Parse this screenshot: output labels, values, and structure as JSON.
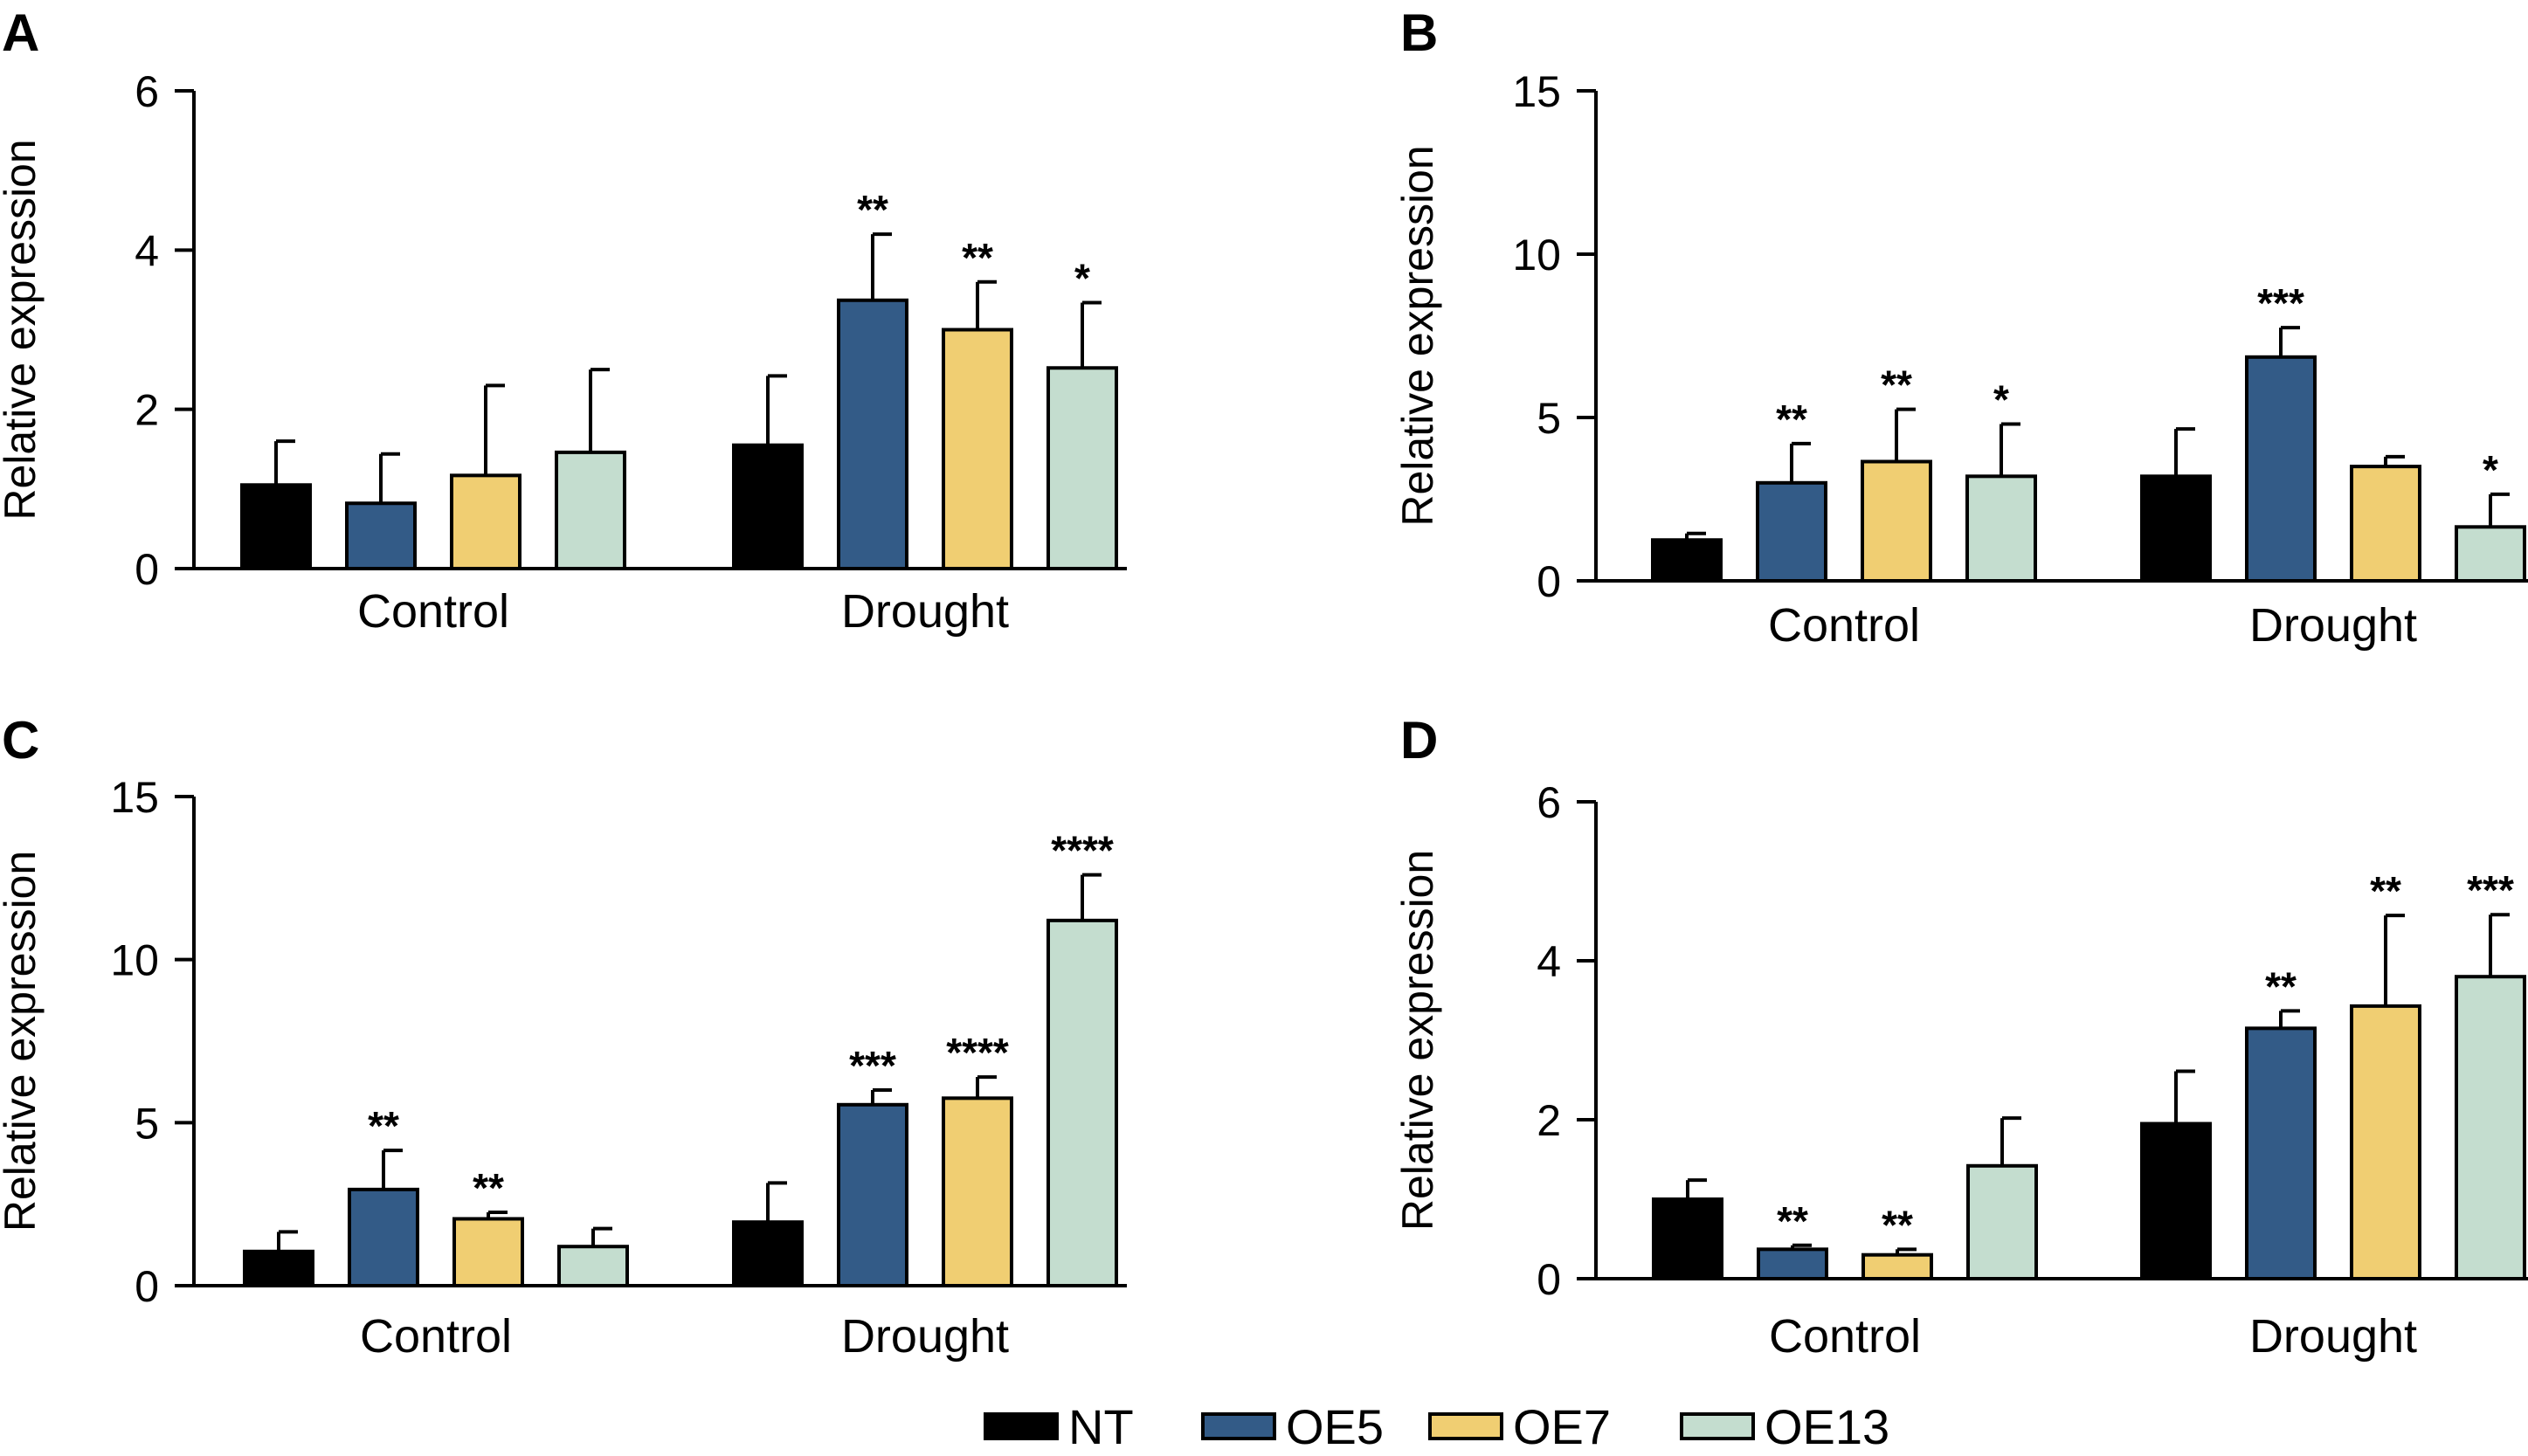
{
  "colors": {
    "NT": "#000000",
    "OE5": "#335b87",
    "OE7": "#f0ce72",
    "OE13": "#c4ddcf"
  },
  "legend": [
    {
      "label": "NT",
      "color": "#000000"
    },
    {
      "label": "OE5",
      "color": "#335b87"
    },
    {
      "label": "OE7",
      "color": "#f0ce72"
    },
    {
      "label": "OE13",
      "color": "#c4ddcf"
    }
  ],
  "chart_data": [
    {
      "panel": "A",
      "type": "bar",
      "ylabel": "Relative expression",
      "ylim": [
        0,
        6
      ],
      "yticks": [
        0,
        2,
        4,
        6
      ],
      "categories": [
        "Control",
        "Drought"
      ],
      "series": [
        {
          "name": "NT",
          "values": [
            1.05,
            1.55
          ],
          "errors": [
            0.55,
            0.87
          ],
          "sig": [
            "",
            ""
          ]
        },
        {
          "name": "OE5",
          "values": [
            0.82,
            3.37
          ],
          "errors": [
            0.62,
            0.83
          ],
          "sig": [
            "",
            "**"
          ]
        },
        {
          "name": "OE7",
          "values": [
            1.17,
            3.0
          ],
          "errors": [
            1.13,
            0.6
          ],
          "sig": [
            "",
            "**"
          ]
        },
        {
          "name": "OE13",
          "values": [
            1.46,
            2.52
          ],
          "errors": [
            1.04,
            0.82
          ],
          "sig": [
            "",
            "*"
          ]
        }
      ]
    },
    {
      "panel": "B",
      "type": "bar",
      "ylabel": "Relative expression",
      "ylim": [
        0,
        15
      ],
      "yticks": [
        0,
        5,
        10,
        15
      ],
      "categories": [
        "Control",
        "Drought"
      ],
      "series": [
        {
          "name": "NT",
          "values": [
            1.25,
            3.2
          ],
          "errors": [
            0.2,
            1.45
          ],
          "sig": [
            "",
            ""
          ]
        },
        {
          "name": "OE5",
          "values": [
            3.0,
            6.85
          ],
          "errors": [
            1.2,
            0.9
          ],
          "sig": [
            "**",
            "***"
          ]
        },
        {
          "name": "OE7",
          "values": [
            3.65,
            3.5
          ],
          "errors": [
            1.6,
            0.3
          ],
          "sig": [
            "**",
            ""
          ]
        },
        {
          "name": "OE13",
          "values": [
            3.2,
            1.65
          ],
          "errors": [
            1.6,
            1.0
          ],
          "sig": [
            "*",
            "*"
          ]
        }
      ]
    },
    {
      "panel": "C",
      "type": "bar",
      "ylabel": "Relative expression",
      "ylim": [
        0,
        15
      ],
      "yticks": [
        0,
        5,
        10,
        15
      ],
      "categories": [
        "Control",
        "Drought"
      ],
      "series": [
        {
          "name": "NT",
          "values": [
            1.05,
            1.95
          ],
          "errors": [
            0.6,
            1.2
          ],
          "sig": [
            "",
            ""
          ]
        },
        {
          "name": "OE5",
          "values": [
            2.95,
            5.55
          ],
          "errors": [
            1.2,
            0.45
          ],
          "sig": [
            "**",
            "***"
          ]
        },
        {
          "name": "OE7",
          "values": [
            2.05,
            5.75
          ],
          "errors": [
            0.2,
            0.65
          ],
          "sig": [
            "**",
            "****"
          ]
        },
        {
          "name": "OE13",
          "values": [
            1.2,
            11.2
          ],
          "errors": [
            0.55,
            1.4
          ],
          "sig": [
            "",
            "****"
          ]
        }
      ]
    },
    {
      "panel": "D",
      "type": "bar",
      "ylabel": "Relative expression",
      "ylim": [
        0,
        6
      ],
      "yticks": [
        0,
        2,
        4,
        6
      ],
      "categories": [
        "Control",
        "Drought"
      ],
      "series": [
        {
          "name": "NT",
          "values": [
            1.0,
            1.95
          ],
          "errors": [
            0.24,
            0.66
          ],
          "sig": [
            "",
            ""
          ]
        },
        {
          "name": "OE5",
          "values": [
            0.37,
            3.15
          ],
          "errors": [
            0.05,
            0.22
          ],
          "sig": [
            "**",
            "**"
          ]
        },
        {
          "name": "OE7",
          "values": [
            0.3,
            3.43
          ],
          "errors": [
            0.07,
            1.14
          ],
          "sig": [
            "**",
            "**"
          ]
        },
        {
          "name": "OE13",
          "values": [
            1.42,
            3.8
          ],
          "errors": [
            0.6,
            0.78
          ],
          "sig": [
            "",
            "***"
          ]
        }
      ]
    }
  ]
}
